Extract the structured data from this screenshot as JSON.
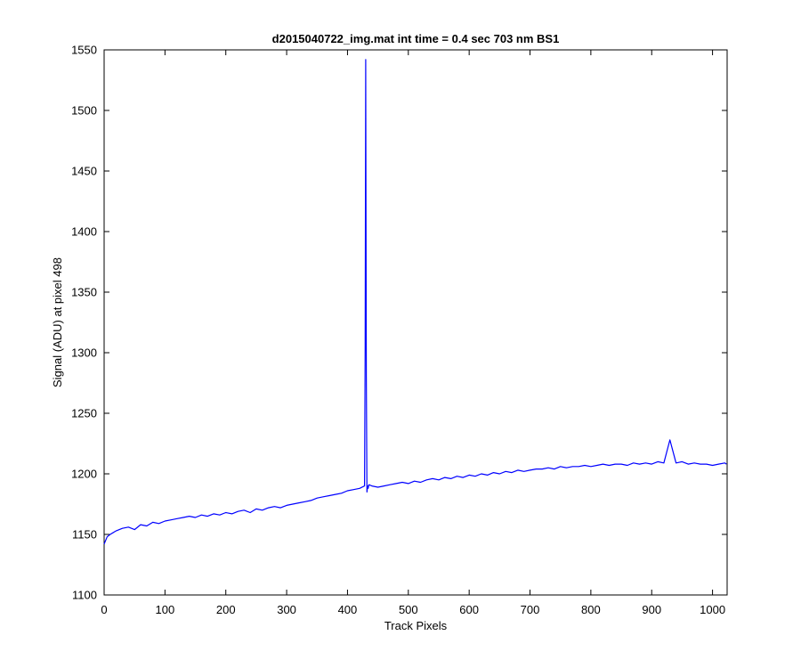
{
  "chart_data": {
    "type": "line",
    "title": "d2015040722_img.mat int time = 0.4 sec  703 nm BS1",
    "xlabel": "Track Pixels",
    "ylabel": "Signal (ADU) at pixel 498",
    "xlim": [
      0,
      1024
    ],
    "ylim": [
      1100,
      1550
    ],
    "xticks": [
      "0",
      "100",
      "200",
      "300",
      "400",
      "500",
      "600",
      "700",
      "800",
      "900",
      "1000"
    ],
    "yticks": [
      "1100",
      "1150",
      "1200",
      "1250",
      "1300",
      "1350",
      "1400",
      "1450",
      "1500",
      "1550"
    ],
    "grid": false,
    "line_color": "#0000ff",
    "series": [
      {
        "x": [
          0,
          5,
          10,
          20,
          30,
          40,
          50,
          60,
          70,
          80,
          90,
          100,
          110,
          120,
          130,
          140,
          150,
          160,
          170,
          180,
          190,
          200,
          210,
          220,
          230,
          240,
          250,
          260,
          270,
          280,
          290,
          300,
          310,
          320,
          330,
          340,
          350,
          360,
          370,
          380,
          390,
          400,
          410,
          420,
          428,
          429,
          430,
          431,
          432,
          433,
          434,
          435,
          440,
          450,
          460,
          470,
          480,
          490,
          500,
          510,
          520,
          530,
          540,
          550,
          560,
          570,
          580,
          590,
          600,
          610,
          620,
          630,
          640,
          650,
          660,
          670,
          680,
          690,
          700,
          710,
          720,
          730,
          740,
          750,
          760,
          770,
          780,
          790,
          800,
          810,
          820,
          830,
          840,
          850,
          860,
          870,
          880,
          890,
          900,
          910,
          920,
          930,
          940,
          950,
          960,
          970,
          980,
          990,
          1000,
          1010,
          1020,
          1023
        ],
        "y": [
          1142,
          1148,
          1150,
          1153,
          1155,
          1156,
          1154,
          1158,
          1157,
          1160,
          1159,
          1161,
          1162,
          1163,
          1164,
          1165,
          1164,
          1166,
          1165,
          1167,
          1166,
          1168,
          1167,
          1169,
          1170,
          1168,
          1171,
          1170,
          1172,
          1173,
          1172,
          1174,
          1175,
          1176,
          1177,
          1178,
          1180,
          1181,
          1182,
          1183,
          1184,
          1186,
          1187,
          1188,
          1190,
          1305,
          1542,
          1280,
          1185,
          1190,
          1188,
          1191,
          1190,
          1189,
          1190,
          1191,
          1192,
          1193,
          1192,
          1194,
          1193,
          1195,
          1196,
          1195,
          1197,
          1196,
          1198,
          1197,
          1199,
          1198,
          1200,
          1199,
          1201,
          1200,
          1202,
          1201,
          1203,
          1202,
          1203,
          1204,
          1204,
          1205,
          1204,
          1206,
          1205,
          1206,
          1206,
          1207,
          1206,
          1207,
          1208,
          1207,
          1208,
          1208,
          1207,
          1209,
          1208,
          1209,
          1208,
          1210,
          1209,
          1228,
          1209,
          1210,
          1208,
          1209,
          1208,
          1208,
          1207,
          1208,
          1209,
          1208
        ]
      }
    ]
  }
}
